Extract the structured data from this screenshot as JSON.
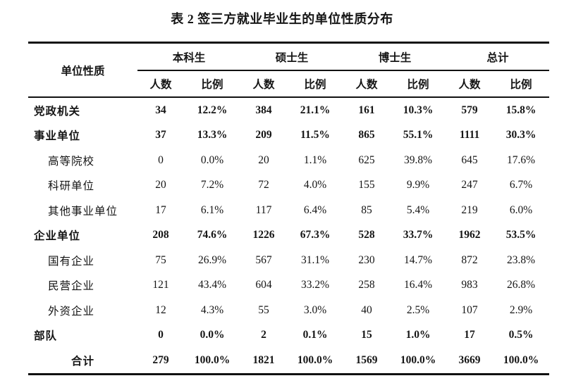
{
  "title": "表 2 签三方就业毕业生的单位性质分布",
  "colors": {
    "background": "#ffffff",
    "text": "#151515",
    "rule": "#111111"
  },
  "table": {
    "row_header": "单位性质",
    "groups": [
      "本科生",
      "硕士生",
      "博士生",
      "总计"
    ],
    "sub_headers": [
      "人数",
      "比例"
    ],
    "rows": [
      {
        "label": "党政机关",
        "level": 0,
        "bold": true,
        "values": [
          "34",
          "12.2%",
          "384",
          "21.1%",
          "161",
          "10.3%",
          "579",
          "15.8%"
        ]
      },
      {
        "label": "事业单位",
        "level": 0,
        "bold": true,
        "values": [
          "37",
          "13.3%",
          "209",
          "11.5%",
          "865",
          "55.1%",
          "1111",
          "30.3%"
        ]
      },
      {
        "label": "高等院校",
        "level": 1,
        "bold": false,
        "values": [
          "0",
          "0.0%",
          "20",
          "1.1%",
          "625",
          "39.8%",
          "645",
          "17.6%"
        ]
      },
      {
        "label": "科研单位",
        "level": 1,
        "bold": false,
        "values": [
          "20",
          "7.2%",
          "72",
          "4.0%",
          "155",
          "9.9%",
          "247",
          "6.7%"
        ]
      },
      {
        "label": "其他事业单位",
        "level": 1,
        "bold": false,
        "values": [
          "17",
          "6.1%",
          "117",
          "6.4%",
          "85",
          "5.4%",
          "219",
          "6.0%"
        ]
      },
      {
        "label": "企业单位",
        "level": 0,
        "bold": true,
        "values": [
          "208",
          "74.6%",
          "1226",
          "67.3%",
          "528",
          "33.7%",
          "1962",
          "53.5%"
        ]
      },
      {
        "label": "国有企业",
        "level": 1,
        "bold": false,
        "values": [
          "75",
          "26.9%",
          "567",
          "31.1%",
          "230",
          "14.7%",
          "872",
          "23.8%"
        ]
      },
      {
        "label": "民营企业",
        "level": 1,
        "bold": false,
        "values": [
          "121",
          "43.4%",
          "604",
          "33.2%",
          "258",
          "16.4%",
          "983",
          "26.8%"
        ]
      },
      {
        "label": "外资企业",
        "level": 1,
        "bold": false,
        "values": [
          "12",
          "4.3%",
          "55",
          "3.0%",
          "40",
          "2.5%",
          "107",
          "2.9%"
        ]
      },
      {
        "label": "部队",
        "level": 0,
        "bold": true,
        "values": [
          "0",
          "0.0%",
          "2",
          "0.1%",
          "15",
          "1.0%",
          "17",
          "0.5%"
        ]
      },
      {
        "label": "合计",
        "level": 2,
        "bold": true,
        "values": [
          "279",
          "100.0%",
          "1821",
          "100.0%",
          "1569",
          "100.0%",
          "3669",
          "100.0%"
        ]
      }
    ]
  }
}
